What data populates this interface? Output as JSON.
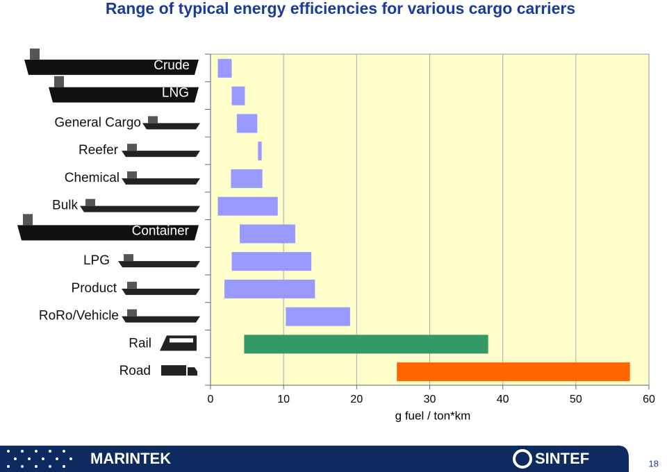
{
  "chart_data": {
    "type": "range_bar",
    "title": "Range of typical energy efficiencies for various cargo carriers",
    "categories": [
      "Crude",
      "LNG",
      "General Cargo",
      "Reefer",
      "Chemical",
      "Bulk",
      "Container",
      "LPG",
      "Product",
      "RoRo/Vehicle",
      "Rail",
      "Road"
    ],
    "low": [
      1.0,
      2.9,
      3.6,
      6.5,
      2.8,
      1.0,
      4.0,
      2.9,
      1.9,
      10.3,
      4.6,
      25.5
    ],
    "high": [
      2.9,
      4.7,
      6.4,
      7.0,
      7.1,
      9.2,
      11.6,
      13.8,
      14.3,
      19.1,
      38.0,
      57.4
    ],
    "colors": [
      "#9999ff",
      "#9999ff",
      "#9999ff",
      "#9999ff",
      "#9999ff",
      "#9999ff",
      "#9999ff",
      "#9999ff",
      "#9999ff",
      "#9999ff",
      "#339966",
      "#ff6600"
    ],
    "xlim": [
      0,
      60
    ],
    "xticks": [
      0,
      10,
      20,
      30,
      40,
      50,
      60
    ],
    "xlabel": "g fuel / ton*km",
    "grid": true
  },
  "footer": {
    "left_logo": "MARINTEK",
    "right_logo": "SINTEF",
    "page_number": "18"
  }
}
